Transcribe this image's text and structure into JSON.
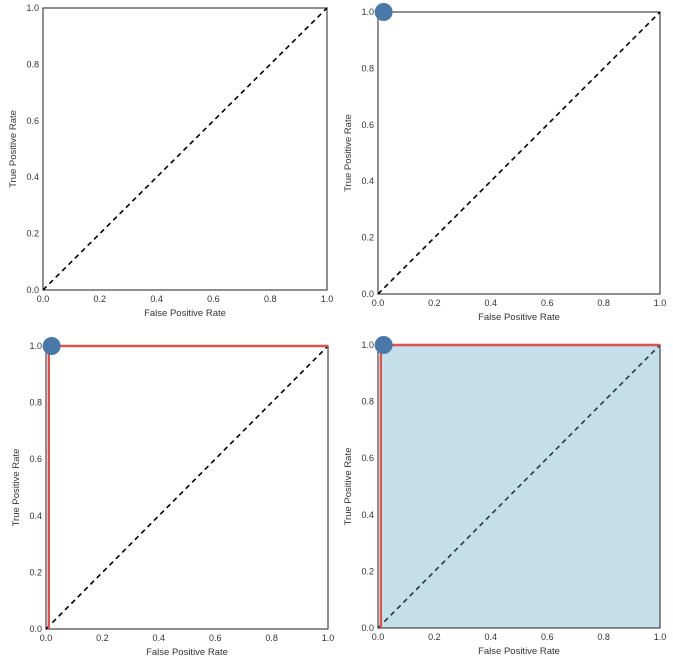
{
  "chart_data": [
    {
      "type": "line",
      "panel": "top-left",
      "xlabel": "False Positive Rate",
      "ylabel": "True Positive Rate",
      "xlim": [
        0,
        1
      ],
      "ylim": [
        0,
        1
      ],
      "xticks": [
        "0.0",
        "0.2",
        "0.4",
        "0.6",
        "0.8",
        "1.0"
      ],
      "yticks": [
        "0.0",
        "0.2",
        "0.4",
        "0.6",
        "0.8",
        "1.0"
      ],
      "grid": false,
      "series": [
        {
          "name": "chance",
          "style": "dashed",
          "color": "#000000",
          "x": [
            0,
            1
          ],
          "y": [
            0,
            1
          ]
        }
      ],
      "points": [],
      "fill": null
    },
    {
      "type": "line",
      "panel": "top-right",
      "xlabel": "False Positive Rate",
      "ylabel": "True Positive Rate",
      "xlim": [
        0,
        1
      ],
      "ylim": [
        0,
        1
      ],
      "xticks": [
        "0.0",
        "0.2",
        "0.4",
        "0.6",
        "0.8",
        "1.0"
      ],
      "yticks": [
        "0.0",
        "0.2",
        "0.4",
        "0.6",
        "0.8",
        "1.0"
      ],
      "grid": false,
      "series": [
        {
          "name": "chance",
          "style": "dashed",
          "color": "#000000",
          "x": [
            0,
            1
          ],
          "y": [
            0,
            1
          ]
        }
      ],
      "points": [
        {
          "name": "classifier",
          "x": 0.02,
          "y": 1.0,
          "color": "#4a78a8"
        }
      ],
      "fill": null
    },
    {
      "type": "line",
      "panel": "bottom-left",
      "xlabel": "False Positive Rate",
      "ylabel": "True Positive Rate",
      "xlim": [
        0,
        1
      ],
      "ylim": [
        0,
        1
      ],
      "xticks": [
        "0.0",
        "0.2",
        "0.4",
        "0.6",
        "0.8",
        "1.0"
      ],
      "yticks": [
        "0.0",
        "0.2",
        "0.4",
        "0.6",
        "0.8",
        "1.0"
      ],
      "grid": false,
      "series": [
        {
          "name": "chance",
          "style": "dashed",
          "color": "#000000",
          "x": [
            0,
            1
          ],
          "y": [
            0,
            1
          ]
        },
        {
          "name": "roc",
          "style": "solid",
          "color": "#d9534f",
          "x": [
            0.01,
            0.01,
            1.0
          ],
          "y": [
            0.0,
            1.0,
            1.0
          ]
        }
      ],
      "points": [
        {
          "name": "classifier",
          "x": 0.02,
          "y": 1.0,
          "color": "#4a78a8"
        }
      ],
      "fill": null
    },
    {
      "type": "area",
      "panel": "bottom-right",
      "xlabel": "False Positive Rate",
      "ylabel": "True Positive Rate",
      "xlim": [
        0,
        1
      ],
      "ylim": [
        0,
        1
      ],
      "xticks": [
        "0.0",
        "0.2",
        "0.4",
        "0.6",
        "0.8",
        "1.0"
      ],
      "yticks": [
        "0.0",
        "0.2",
        "0.4",
        "0.6",
        "0.8",
        "1.0"
      ],
      "grid": false,
      "series": [
        {
          "name": "chance",
          "style": "dashed",
          "color": "#2b3540",
          "x": [
            0,
            1
          ],
          "y": [
            0,
            1
          ]
        },
        {
          "name": "roc",
          "style": "solid",
          "color": "#d9534f",
          "x": [
            0.01,
            0.01,
            1.0
          ],
          "y": [
            0.0,
            1.0,
            1.0
          ]
        }
      ],
      "points": [
        {
          "name": "classifier",
          "x": 0.02,
          "y": 1.0,
          "color": "#4a78a8"
        }
      ],
      "fill": {
        "name": "auc-area",
        "color": "#c5dfea",
        "x": [
          0.01,
          0.01,
          1.0,
          1.0
        ],
        "y": [
          0.0,
          1.0,
          1.0,
          0.0
        ]
      }
    }
  ]
}
